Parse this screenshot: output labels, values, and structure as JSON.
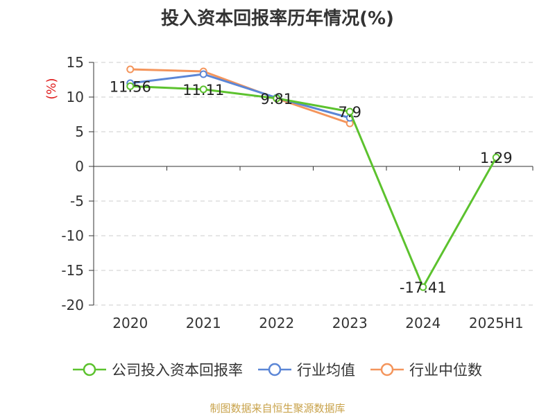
{
  "title": "投入资本回报率历年情况(%)",
  "source": "制图数据来自恒生聚源数据库",
  "chart_data": {
    "type": "line",
    "title": "投入资本回报率历年情况(%)",
    "ylabel": "(%)",
    "xlabel": "",
    "categories": [
      "2020",
      "2021",
      "2022",
      "2023",
      "2024",
      "2025H1"
    ],
    "ylim": [
      -20,
      15
    ],
    "yticks": [
      15,
      10,
      5,
      0,
      -5,
      -10,
      -15,
      -20
    ],
    "grid": true,
    "legend_position": "bottom",
    "series": [
      {
        "name": "公司投入资本回报率",
        "color": "#5cc22e",
        "values": [
          11.56,
          11.11,
          9.81,
          7.9,
          -17.41,
          1.29
        ],
        "labels": [
          "11.56",
          "11.11",
          "9.81",
          "7.9",
          "-17.41",
          "1.29"
        ]
      },
      {
        "name": "行业均值",
        "color": "#5b86d6",
        "values": [
          12.0,
          13.3,
          9.9,
          7.0,
          null,
          null
        ]
      },
      {
        "name": "行业中位数",
        "color": "#f4955c",
        "values": [
          14.0,
          13.7,
          9.8,
          6.2,
          null,
          null
        ]
      }
    ]
  }
}
